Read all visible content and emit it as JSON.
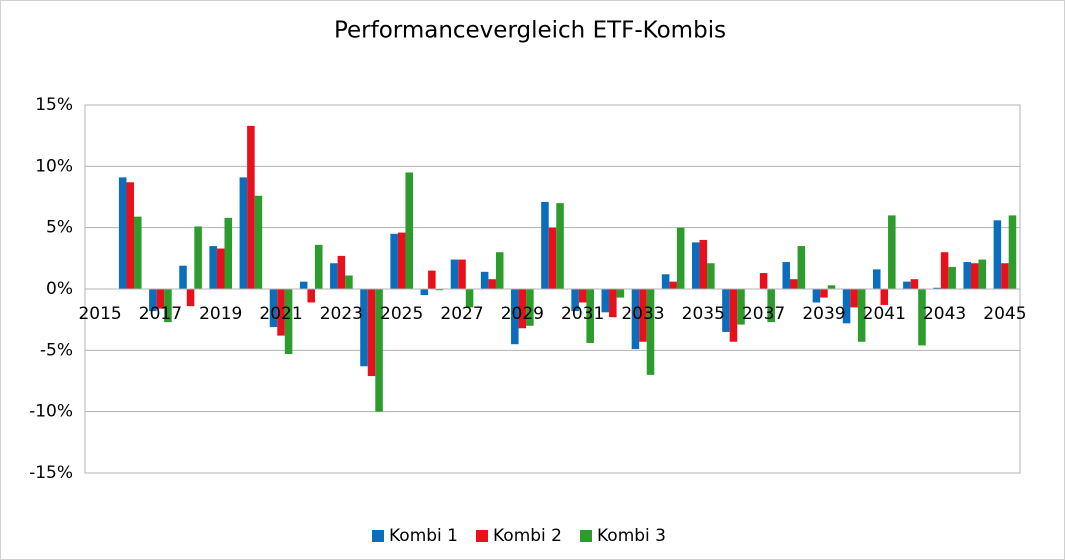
{
  "chart_data": {
    "type": "bar",
    "title": "Performancevergleich ETF-Kombis",
    "categories": [
      "2015",
      null,
      "2017",
      null,
      "2019",
      null,
      "2021",
      null,
      "2023",
      null,
      "2025",
      null,
      "2027",
      null,
      "2029",
      null,
      "2031",
      null,
      "2033",
      null,
      "2035",
      null,
      "2037",
      null,
      "2039",
      null,
      "2041",
      null,
      "2043",
      null,
      "2045"
    ],
    "series": [
      {
        "name": "Kombi 1",
        "color": "#0a6ebd",
        "values": [
          0,
          9.1,
          -1.8,
          1.9,
          3.5,
          9.1,
          -3.1,
          0.6,
          2.1,
          -6.3,
          4.5,
          -0.5,
          2.4,
          1.4,
          -4.5,
          7.1,
          -1.8,
          -1.9,
          -4.9,
          1.2,
          3.8,
          -3.5,
          0,
          2.2,
          -1.1,
          -2.8,
          1.6,
          0.6,
          0.1,
          2.2,
          5.6
        ]
      },
      {
        "name": "Kombi 2",
        "color": "#e8111b",
        "values": [
          0,
          8.7,
          -1.6,
          -1.4,
          3.3,
          13.3,
          -3.8,
          -1.1,
          2.7,
          -7.1,
          4.6,
          1.5,
          2.4,
          0.8,
          -3.2,
          5.0,
          -1.1,
          -2.3,
          -4.3,
          0.6,
          4.0,
          -4.3,
          1.3,
          0.8,
          -0.7,
          -1.5,
          -1.3,
          0.8,
          3.0,
          2.1,
          2.1
        ]
      },
      {
        "name": "Kombi 3",
        "color": "#2c9c2c",
        "values": [
          0,
          5.9,
          -2.7,
          5.1,
          5.8,
          7.6,
          -5.3,
          3.6,
          1.1,
          -10.0,
          9.5,
          -0.1,
          -1.5,
          3.0,
          -3.0,
          7.0,
          -4.4,
          -0.7,
          -7.0,
          5.0,
          2.1,
          -2.9,
          -2.7,
          3.5,
          0.3,
          -4.3,
          6.0,
          -4.6,
          1.8,
          2.4,
          6.0
        ]
      }
    ],
    "ylim": [
      -15,
      15
    ],
    "yticks": [
      {
        "value": -15,
        "label": "-15%"
      },
      {
        "value": -10,
        "label": "-10%"
      },
      {
        "value": -5,
        "label": "-5%"
      },
      {
        "value": 0,
        "label": "0%"
      },
      {
        "value": 5,
        "label": "5%"
      },
      {
        "value": 10,
        "label": "10%"
      },
      {
        "value": 15,
        "label": "15%"
      }
    ],
    "grid": true,
    "legend": "bottom"
  }
}
